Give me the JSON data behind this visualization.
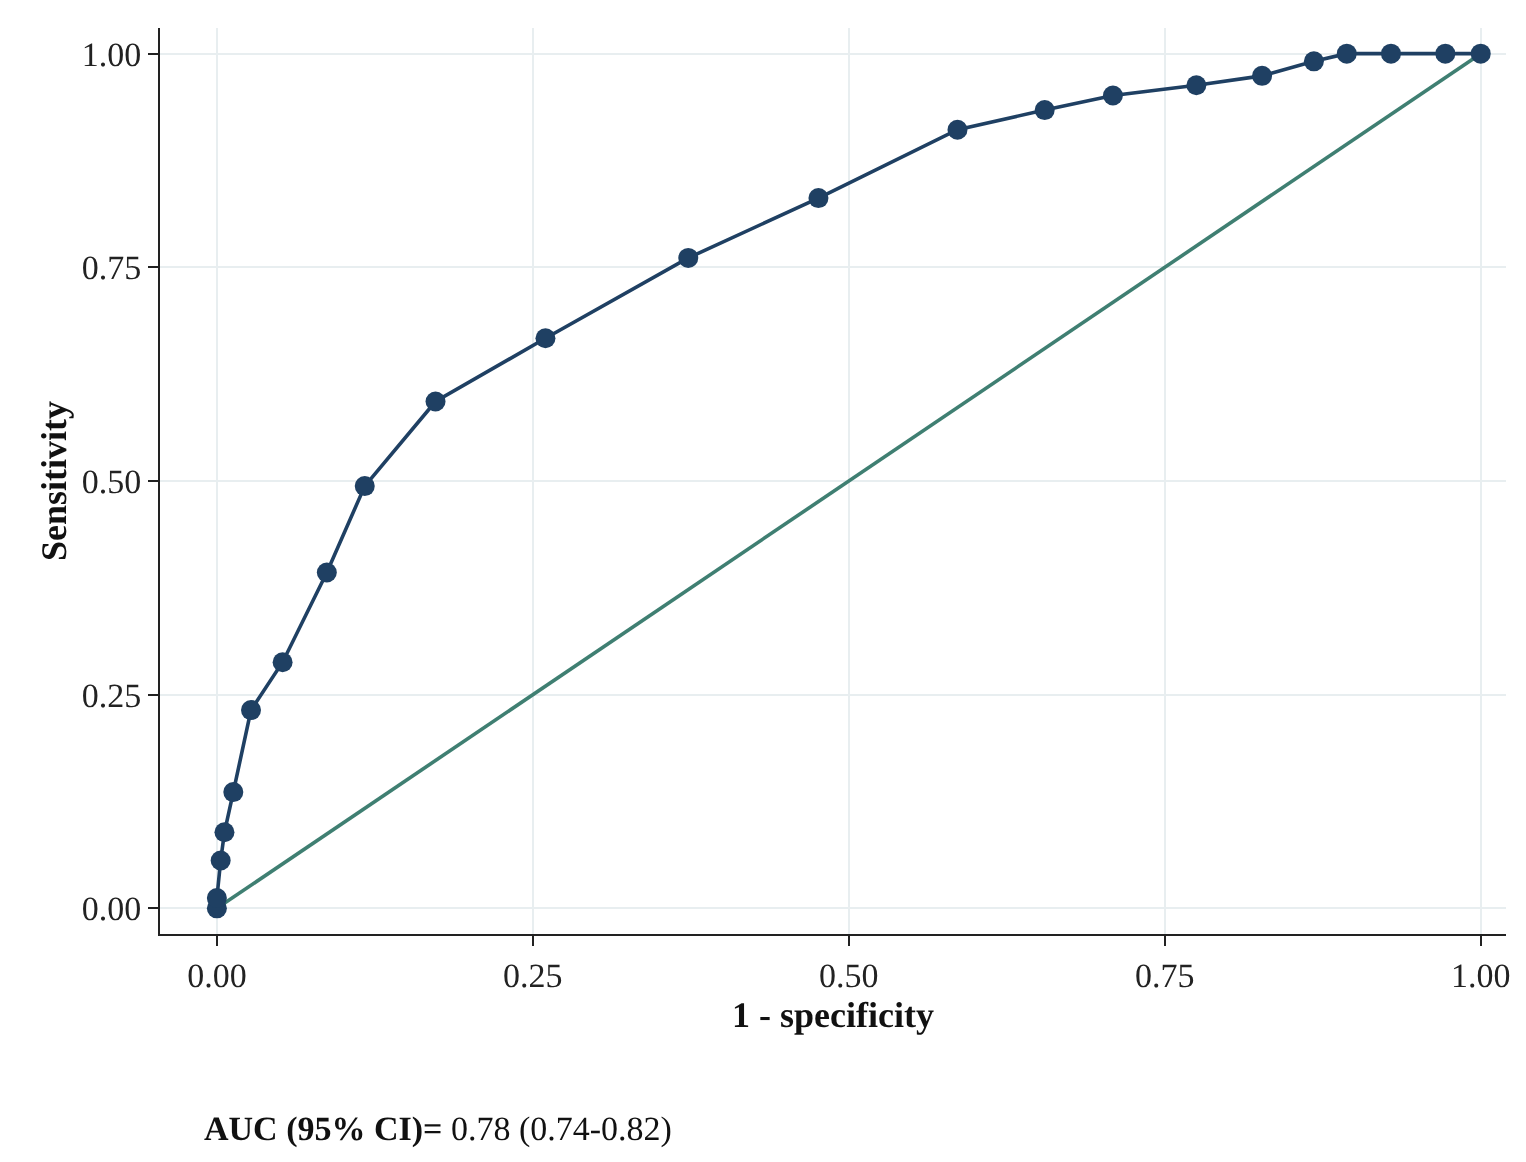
{
  "chart_data": {
    "type": "line",
    "xlabel": "1 - specificity",
    "ylabel": "Sensitivity",
    "xlim": [
      -0.045,
      1.02
    ],
    "ylim": [
      -0.03,
      1.03
    ],
    "xticks": [
      {
        "value": 0,
        "label": "0.00"
      },
      {
        "value": 0.25,
        "label": "0.25"
      },
      {
        "value": 0.5,
        "label": "0.50"
      },
      {
        "value": 0.75,
        "label": "0.75"
      },
      {
        "value": 1,
        "label": "1.00"
      }
    ],
    "yticks": [
      {
        "value": 0,
        "label": "0.00"
      },
      {
        "value": 0.25,
        "label": "0.25"
      },
      {
        "value": 0.5,
        "label": "0.50"
      },
      {
        "value": 0.75,
        "label": "0.75"
      },
      {
        "value": 1,
        "label": "1.00"
      }
    ],
    "grid": true,
    "series": [
      {
        "color": "#3f7f72",
        "marker": "none",
        "x": [
          0,
          1
        ],
        "values": [
          0,
          1
        ]
      },
      {
        "color": "#1f4063",
        "marker": "circle",
        "x": [
          0,
          0,
          0.003,
          0.006,
          0.013,
          0.027,
          0.052,
          0.087,
          0.117,
          0.173,
          0.26,
          0.373,
          0.476,
          0.586,
          0.655,
          0.709,
          0.775,
          0.827,
          0.868,
          0.894,
          0.929,
          0.972,
          1.0
        ],
        "values": [
          0,
          0.012,
          0.056,
          0.089,
          0.136,
          0.232,
          0.288,
          0.393,
          0.494,
          0.593,
          0.667,
          0.761,
          0.831,
          0.911,
          0.934,
          0.951,
          0.963,
          0.974,
          0.991,
          1.0,
          1.0,
          1.0,
          1.0
        ]
      }
    ],
    "annotations": [
      "AUC (95% CI)= 0.78 (0.74-0.82)"
    ]
  }
}
